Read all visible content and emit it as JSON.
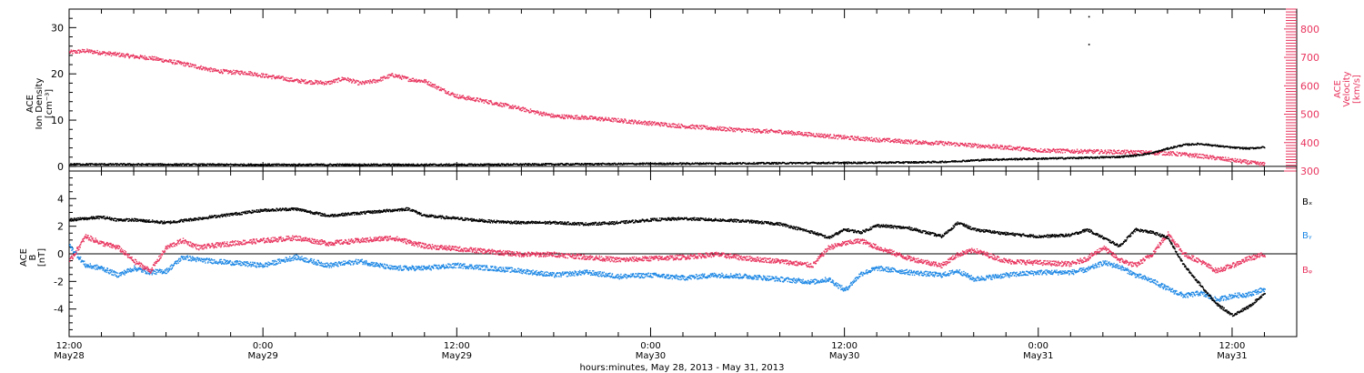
{
  "colors": {
    "black": "#000000",
    "red": "#e8345e",
    "blue": "#1e88e5"
  },
  "x_axis": {
    "tick_labels": [
      {
        "time": "12:00",
        "date": "May28"
      },
      {
        "time": "0:00",
        "date": "May29"
      },
      {
        "time": "12:00",
        "date": "May29"
      },
      {
        "time": "0:00",
        "date": "May30"
      },
      {
        "time": "12:00",
        "date": "May30"
      },
      {
        "time": "0:00",
        "date": "May31"
      },
      {
        "time": "12:00",
        "date": "May31"
      }
    ],
    "title": "hours:minutes, May 28, 2013 - May 31, 2013"
  },
  "chart_data": [
    {
      "type": "scatter",
      "panel": "top",
      "x_unit": "hours since 2013-05-28 12:00",
      "xlim": [
        0,
        76
      ],
      "left_axis": {
        "label_lines": [
          "ACE",
          "Ion Density",
          "[cm⁻³]"
        ],
        "ylim": [
          -1,
          34
        ],
        "ticks": [
          "0",
          "10",
          "20",
          "30"
        ]
      },
      "right_axis": {
        "label_lines": [
          "ACE",
          "Velocity",
          "[km/s]"
        ],
        "ylim": [
          300,
          870
        ],
        "ticks": [
          "300",
          "400",
          "500",
          "600",
          "700",
          "800"
        ]
      },
      "series": [
        {
          "axis": "left",
          "color": "black",
          "x": [
            0,
            12,
            24,
            36,
            48,
            52,
            54,
            57,
            60,
            63,
            65,
            66,
            67,
            68,
            69,
            70,
            71,
            72,
            73,
            74
          ],
          "y": [
            0.6,
            0.5,
            0.5,
            0.7,
            0.9,
            1.0,
            1.1,
            1.6,
            1.8,
            2.0,
            2.2,
            2.5,
            3.0,
            4.0,
            4.8,
            5.0,
            4.6,
            4.2,
            4.0,
            4.3
          ]
        },
        {
          "axis": "right",
          "color": "red",
          "x": [
            0,
            1,
            2,
            3,
            4,
            5,
            6,
            7,
            8,
            9,
            10,
            11,
            12,
            13,
            14,
            15,
            16,
            17,
            18,
            19,
            20,
            21,
            22,
            23,
            24,
            26,
            28,
            30,
            32,
            34,
            36,
            38,
            40,
            42,
            44,
            46,
            48,
            50,
            52,
            54,
            56,
            58,
            60,
            62,
            64,
            66,
            68,
            70,
            72,
            74
          ],
          "y": [
            720,
            725,
            718,
            712,
            705,
            700,
            690,
            680,
            668,
            655,
            650,
            648,
            638,
            630,
            620,
            615,
            612,
            628,
            610,
            620,
            640,
            625,
            618,
            590,
            565,
            545,
            520,
            495,
            490,
            480,
            470,
            460,
            452,
            445,
            440,
            430,
            420,
            412,
            405,
            400,
            392,
            385,
            375,
            372,
            370,
            368,
            365,
            355,
            340,
            325
          ]
        }
      ],
      "outliers": [
        {
          "x": 63.1,
          "y": 32.5
        },
        {
          "x": 63.1,
          "y": 26.5
        }
      ]
    },
    {
      "type": "scatter",
      "panel": "bottom",
      "x_unit": "hours since 2013-05-28 12:00",
      "xlim": [
        0,
        76
      ],
      "y_axis": {
        "label_lines": [
          "ACE",
          "B",
          "[nT]"
        ],
        "ylim": [
          -6,
          6
        ],
        "ticks": [
          "-4",
          "-2",
          "0",
          "2",
          "4"
        ]
      },
      "series": [
        {
          "name": "Bₓ",
          "color": "black",
          "x": [
            0,
            1,
            2,
            3,
            4,
            5,
            6,
            8,
            10,
            12,
            14,
            16,
            18,
            20,
            21,
            22,
            24,
            26,
            28,
            30,
            32,
            34,
            36,
            38,
            40,
            42,
            44,
            46,
            47,
            48,
            49,
            50,
            52,
            54,
            55,
            56,
            58,
            60,
            62,
            63,
            64,
            65,
            66,
            67,
            68,
            69,
            70,
            71,
            72,
            73,
            74
          ],
          "y": [
            2.5,
            2.6,
            2.7,
            2.5,
            2.5,
            2.4,
            2.3,
            2.6,
            2.9,
            3.2,
            3.3,
            2.8,
            3.0,
            3.2,
            3.3,
            2.8,
            2.6,
            2.4,
            2.3,
            2.3,
            2.2,
            2.3,
            2.5,
            2.6,
            2.5,
            2.4,
            2.2,
            1.6,
            1.2,
            1.8,
            1.6,
            2.1,
            1.9,
            1.3,
            2.3,
            1.8,
            1.5,
            1.3,
            1.4,
            1.8,
            1.2,
            0.6,
            1.8,
            1.6,
            1.2,
            -0.8,
            -2.2,
            -3.6,
            -4.4,
            -3.8,
            -2.8
          ]
        },
        {
          "name": "Bᵧ",
          "color": "blue",
          "x": [
            0,
            1,
            2,
            3,
            4,
            5,
            6,
            7,
            8,
            10,
            12,
            14,
            16,
            18,
            20,
            22,
            24,
            26,
            28,
            30,
            32,
            34,
            36,
            38,
            40,
            42,
            44,
            46,
            47,
            48,
            49,
            50,
            52,
            54,
            55,
            56,
            58,
            60,
            62,
            63,
            64,
            65,
            66,
            67,
            68,
            69,
            70,
            71,
            72,
            73,
            74
          ],
          "y": [
            0.6,
            -0.8,
            -1.0,
            -1.5,
            -1.0,
            -1.3,
            -1.2,
            -0.2,
            -0.4,
            -0.6,
            -0.8,
            -0.2,
            -0.8,
            -0.5,
            -1.0,
            -1.0,
            -0.8,
            -1.0,
            -1.2,
            -1.5,
            -1.3,
            -1.6,
            -1.5,
            -1.7,
            -1.5,
            -1.6,
            -1.8,
            -2.0,
            -1.8,
            -2.6,
            -1.4,
            -1.0,
            -1.3,
            -1.5,
            -1.2,
            -1.8,
            -1.5,
            -1.3,
            -1.3,
            -1.1,
            -0.6,
            -0.9,
            -1.5,
            -1.9,
            -2.5,
            -3.0,
            -2.8,
            -3.3,
            -3.0,
            -2.9,
            -2.5
          ]
        },
        {
          "name": "Bᵩ",
          "color": "red",
          "x": [
            0,
            1,
            2,
            3,
            4,
            5,
            6,
            7,
            8,
            10,
            12,
            14,
            16,
            18,
            20,
            22,
            24,
            26,
            28,
            30,
            32,
            34,
            36,
            38,
            40,
            42,
            44,
            46,
            47,
            48,
            49,
            50,
            52,
            54,
            55,
            56,
            58,
            60,
            62,
            63,
            64,
            65,
            66,
            67,
            68,
            69,
            70,
            71,
            72,
            73,
            74
          ],
          "y": [
            -0.5,
            1.3,
            0.8,
            0.5,
            -0.5,
            -1.2,
            0.5,
            1.0,
            0.5,
            0.8,
            1.0,
            1.2,
            0.8,
            1.0,
            1.2,
            0.6,
            0.4,
            0.2,
            0.0,
            0.0,
            -0.2,
            -0.4,
            -0.3,
            -0.2,
            0.0,
            -0.3,
            -0.5,
            -0.8,
            0.5,
            0.8,
            1.0,
            0.5,
            -0.3,
            -0.8,
            0.0,
            0.3,
            -0.5,
            -0.6,
            -0.7,
            -0.3,
            0.5,
            -0.4,
            -0.8,
            0.0,
            1.5,
            0.0,
            -0.5,
            -1.2,
            -0.8,
            -0.3,
            0.0
          ]
        }
      ]
    }
  ]
}
